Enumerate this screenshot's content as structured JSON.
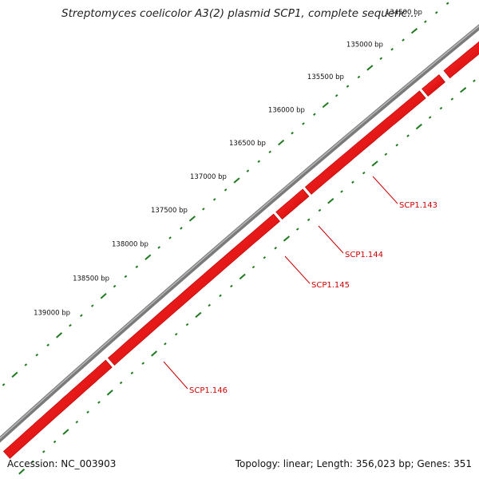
{
  "title": "Streptomyces coelicolor A3(2) plasmid SCP1, complete sequenc...",
  "footer": {
    "accession": "Accession: NC_003903",
    "summary": "Topology: linear; Length: 356,023 bp; Genes: 351"
  },
  "ticks": [
    {
      "label": "134500 bp"
    },
    {
      "label": "135000 bp"
    },
    {
      "label": "135500 bp"
    },
    {
      "label": "136000 bp"
    },
    {
      "label": "136500 bp"
    },
    {
      "label": "137000 bp"
    },
    {
      "label": "137500 bp"
    },
    {
      "label": "138000 bp"
    },
    {
      "label": "138500 bp"
    },
    {
      "label": "139000 bp"
    }
  ],
  "genes": [
    {
      "name": "SCP1.143"
    },
    {
      "name": "SCP1.144"
    },
    {
      "name": "SCP1.145"
    },
    {
      "name": "SCP1.146"
    }
  ],
  "colors": {
    "backbone": "#808080",
    "gene": "#ee0000",
    "gene_label": "#cc0000",
    "tick": "#1f7a1f"
  }
}
